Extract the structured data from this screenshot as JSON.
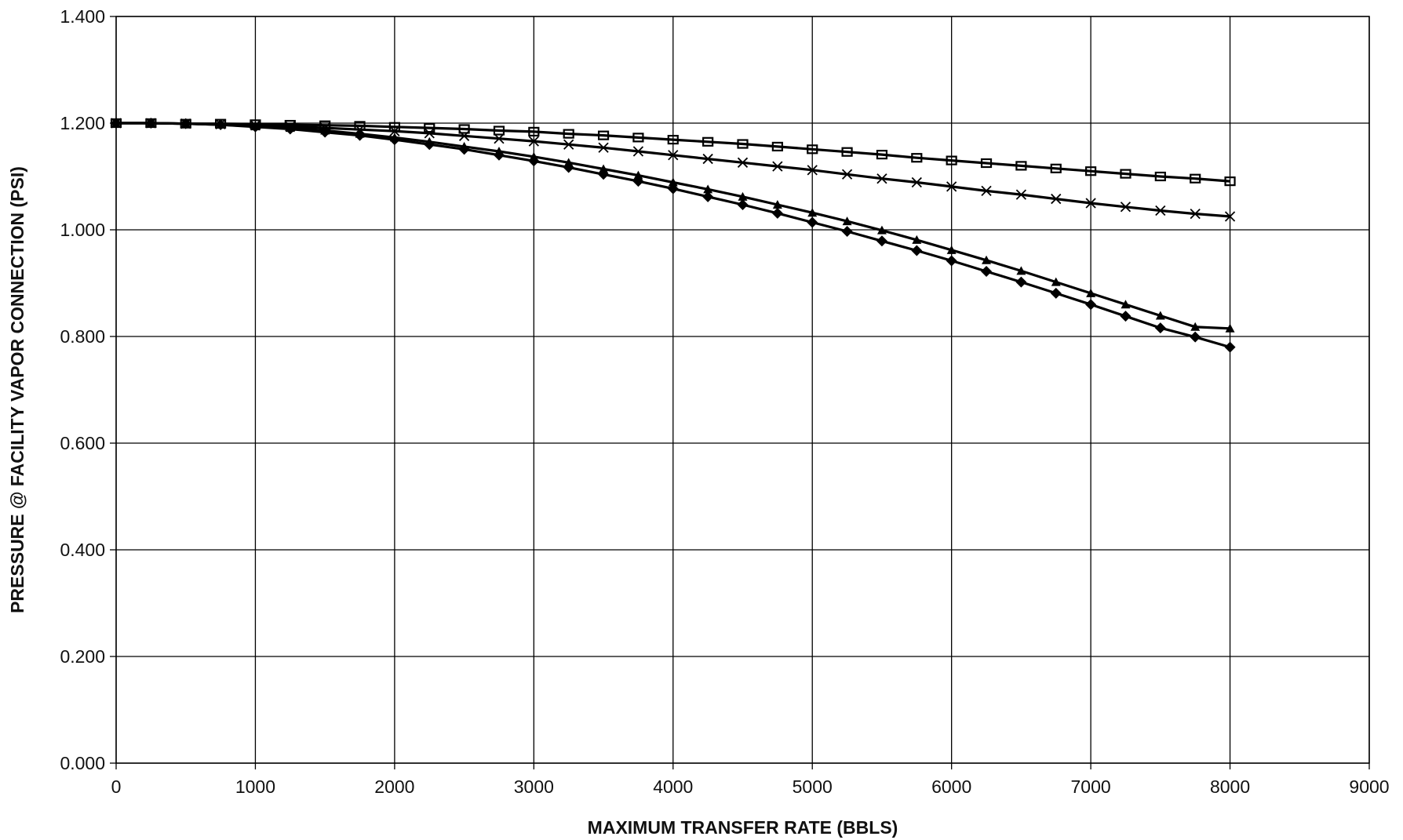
{
  "chart_data": {
    "type": "line",
    "title": "",
    "xlabel": "MAXIMUM TRANSFER RATE (BBLS)",
    "ylabel": "PRESSURE @ FACILITY VAPOR CONNECTION (PSI)",
    "xlim": [
      0,
      9000
    ],
    "ylim": [
      0,
      1.4
    ],
    "x_ticks": [
      "0",
      "1000",
      "2000",
      "3000",
      "4000",
      "5000",
      "6000",
      "7000",
      "8000",
      "9000"
    ],
    "y_ticks": [
      "0.000",
      "0.200",
      "0.400",
      "0.600",
      "0.800",
      "1.000",
      "1.200",
      "1.400"
    ],
    "grid": true,
    "legend": "none",
    "line_color": "#000000",
    "x": [
      0,
      250,
      500,
      750,
      1000,
      1250,
      1500,
      1750,
      2000,
      2250,
      2500,
      2750,
      3000,
      3250,
      3500,
      3750,
      4000,
      4250,
      4500,
      4750,
      5000,
      5250,
      5500,
      5750,
      6000,
      6250,
      6500,
      6750,
      7000,
      7250,
      7500,
      7750,
      8000
    ],
    "series": [
      {
        "marker": "square",
        "values": [
          1.2,
          1.2,
          1.199,
          1.199,
          1.198,
          1.197,
          1.196,
          1.195,
          1.193,
          1.191,
          1.189,
          1.186,
          1.184,
          1.18,
          1.177,
          1.173,
          1.169,
          1.165,
          1.161,
          1.156,
          1.151,
          1.146,
          1.141,
          1.135,
          1.13,
          1.125,
          1.12,
          1.115,
          1.11,
          1.105,
          1.1,
          1.096,
          1.091
        ]
      },
      {
        "marker": "x",
        "values": [
          1.2,
          1.2,
          1.199,
          1.198,
          1.196,
          1.194,
          1.191,
          1.188,
          1.185,
          1.181,
          1.176,
          1.171,
          1.166,
          1.16,
          1.154,
          1.147,
          1.14,
          1.133,
          1.126,
          1.119,
          1.112,
          1.104,
          1.096,
          1.089,
          1.081,
          1.073,
          1.066,
          1.058,
          1.05,
          1.043,
          1.036,
          1.03,
          1.025
        ]
      },
      {
        "marker": "triangle",
        "values": [
          1.2,
          1.2,
          1.199,
          1.197,
          1.194,
          1.191,
          1.186,
          1.18,
          1.173,
          1.165,
          1.156,
          1.147,
          1.137,
          1.126,
          1.114,
          1.102,
          1.089,
          1.076,
          1.062,
          1.047,
          1.032,
          1.016,
          0.999,
          0.981,
          0.962,
          0.943,
          0.923,
          0.902,
          0.881,
          0.86,
          0.839,
          0.818,
          0.815
        ]
      },
      {
        "marker": "diamond",
        "values": [
          1.2,
          1.2,
          1.199,
          1.197,
          1.193,
          1.189,
          1.183,
          1.177,
          1.169,
          1.16,
          1.151,
          1.14,
          1.129,
          1.117,
          1.104,
          1.091,
          1.077,
          1.062,
          1.047,
          1.031,
          1.014,
          0.997,
          0.979,
          0.961,
          0.942,
          0.922,
          0.902,
          0.881,
          0.86,
          0.838,
          0.816,
          0.799,
          0.78
        ]
      }
    ]
  }
}
